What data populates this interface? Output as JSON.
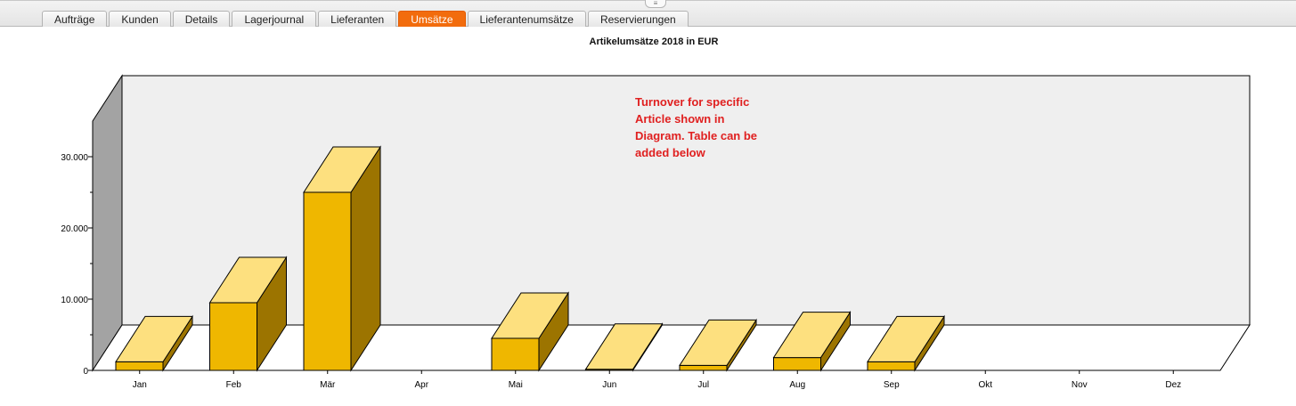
{
  "tabs": [
    {
      "label": "Aufträge",
      "active": false
    },
    {
      "label": "Kunden",
      "active": false
    },
    {
      "label": "Details",
      "active": false
    },
    {
      "label": "Lagerjournal",
      "active": false
    },
    {
      "label": "Lieferanten",
      "active": false
    },
    {
      "label": "Umsätze",
      "active": true
    },
    {
      "label": "Lieferantenumsätze",
      "active": false
    },
    {
      "label": "Reservierungen",
      "active": false
    }
  ],
  "grip_icon": "drag-handle-icon",
  "colors": {
    "active_tab": "#f26c0d",
    "bar_front": "#efb700",
    "bar_top": "#fde07f",
    "bar_side": "#9c7400",
    "back_wall": "#efefef",
    "left_wall": "#a3a3a3",
    "annotation": "#e02020"
  },
  "annotation": "Turnover for specific Article shown in Diagram. Table can be added below",
  "chart_data": {
    "type": "bar",
    "style": "3d",
    "title": "Artikelumsätze 2018 in EUR",
    "xlabel": "",
    "ylabel": "",
    "categories": [
      "Jan",
      "Feb",
      "Mär",
      "Apr",
      "Mai",
      "Jun",
      "Jul",
      "Aug",
      "Sep",
      "Okt",
      "Nov",
      "Dez"
    ],
    "values": [
      1200,
      9500,
      25000,
      0,
      4500,
      150,
      700,
      1800,
      1200,
      0,
      0,
      0
    ],
    "ylim": [
      0,
      35000
    ],
    "yticks": [
      0,
      10000,
      20000,
      30000
    ],
    "ytick_labels": [
      "0",
      "10.000",
      "20.000",
      "30.000"
    ],
    "grid": false,
    "legend": "none"
  }
}
